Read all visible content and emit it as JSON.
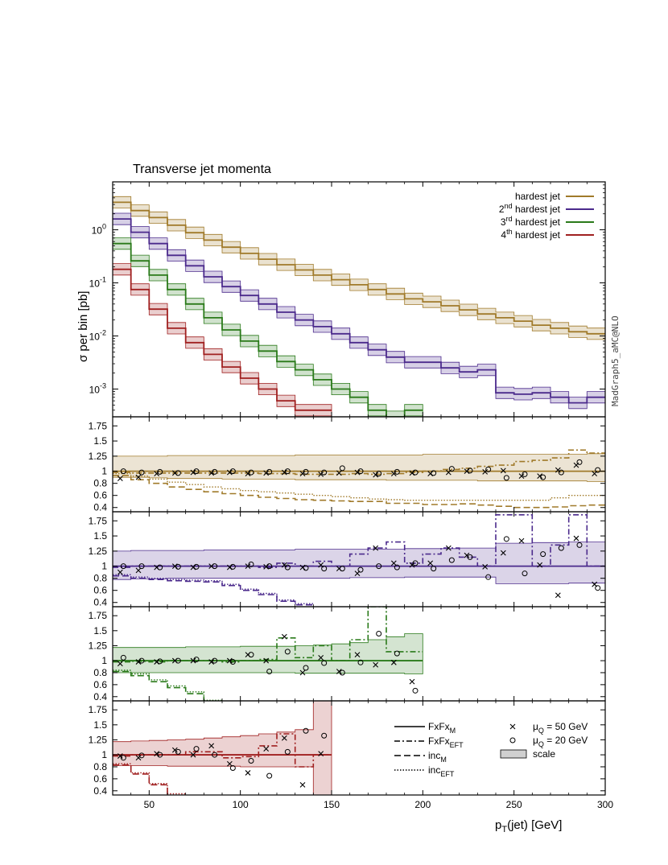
{
  "chart_data": {
    "type": "line",
    "title": "Transverse jet momenta",
    "side_label": "MadGraph5_aMC@NLO",
    "xlabel": {
      "main": "p",
      "sub": "T",
      "rest": "(jet) [GeV]"
    },
    "xlim": [
      30,
      300
    ],
    "xticks": [
      50,
      100,
      150,
      200,
      250,
      300
    ],
    "bin_width": 10,
    "x_bins_low": [
      30,
      40,
      50,
      60,
      70,
      80,
      90,
      100,
      110,
      120,
      130,
      140,
      150,
      160,
      170,
      180,
      190,
      200,
      210,
      220,
      230,
      240,
      250,
      260,
      270,
      280,
      290
    ],
    "main": {
      "ylabel": "σ per bin [pb]",
      "yscale": "log",
      "ylim": [
        0.0003,
        8
      ],
      "yticks": [
        {
          "value": 1,
          "base": "10",
          "exp": "0"
        },
        {
          "value": 0.1,
          "base": "10",
          "exp": "-1"
        },
        {
          "value": 0.01,
          "base": "10",
          "exp": "-2"
        },
        {
          "value": 0.001,
          "base": "10",
          "exp": "-3"
        }
      ],
      "band_factor": [
        0.78,
        1.28
      ],
      "series": [
        {
          "name": "hardest jet",
          "pre": "",
          "sup": "",
          "post": "hardest jet",
          "color": "#a07a2a",
          "values": [
            3.3,
            2.3,
            1.7,
            1.22,
            0.88,
            0.64,
            0.47,
            0.36,
            0.28,
            0.22,
            0.175,
            0.14,
            0.115,
            0.092,
            0.075,
            0.062,
            0.05,
            0.044,
            0.037,
            0.031,
            0.026,
            0.022,
            0.019,
            0.016,
            0.014,
            0.012,
            0.011
          ]
        },
        {
          "name": "2nd hardest jet",
          "pre": "2",
          "sup": "nd",
          "post": " hardest jet",
          "color": "#4b2a8c",
          "values": [
            1.6,
            0.9,
            0.55,
            0.33,
            0.21,
            0.13,
            0.085,
            0.058,
            0.04,
            0.028,
            0.02,
            0.015,
            0.011,
            0.0075,
            0.0055,
            0.004,
            0.0032,
            0.0032,
            0.0025,
            0.0021,
            0.0023,
            0.00085,
            0.0008,
            0.00085,
            0.0007,
            0.00055,
            0.0007
          ]
        },
        {
          "name": "3rd hardest jet",
          "pre": "3",
          "sup": "rd",
          "post": " hardest jet",
          "color": "#2a7a1a",
          "values": [
            0.55,
            0.26,
            0.14,
            0.075,
            0.04,
            0.022,
            0.013,
            0.008,
            0.0052,
            0.0033,
            0.0023,
            0.0015,
            0.001,
            0.0007,
            0.0004,
            0.0003,
            0.0004
          ]
        },
        {
          "name": "4th hardest jet",
          "pre": "4",
          "sup": "th",
          "post": " hardest jet",
          "color": "#a02020",
          "values": [
            0.18,
            0.075,
            0.032,
            0.014,
            0.0075,
            0.0045,
            0.0026,
            0.0016,
            0.001,
            0.0006,
            0.0004,
            0.0004
          ]
        }
      ]
    },
    "ratio": {
      "ylim": [
        0.33,
        1.9
      ],
      "yticks": [
        0.4,
        0.6,
        0.8,
        1,
        1.25,
        1.5,
        1.75
      ],
      "yticklabels": [
        "0.4",
        "0.6",
        "0.8",
        "1",
        "1.25",
        "1.5",
        "1.75"
      ],
      "panels": [
        {
          "color": "#a07a2a",
          "band_lo": [
            0.9,
            0.9,
            0.89,
            0.88,
            0.88,
            0.88,
            0.87,
            0.87,
            0.87,
            0.87,
            0.86,
            0.86,
            0.86,
            0.86,
            0.86,
            0.85,
            0.85,
            0.85,
            0.85,
            0.85,
            0.84,
            0.84,
            0.84,
            0.84,
            0.84,
            0.84,
            0.83
          ],
          "band_hi": [
            1.25,
            1.25,
            1.25,
            1.26,
            1.26,
            1.26,
            1.26,
            1.26,
            1.26,
            1.26,
            1.27,
            1.27,
            1.27,
            1.27,
            1.27,
            1.27,
            1.27,
            1.28,
            1.28,
            1.28,
            1.28,
            1.28,
            1.28,
            1.28,
            1.28,
            1.28,
            1.29
          ],
          "fxfx_eft": [
            0.98,
            0.97,
            0.97,
            0.97,
            0.97,
            0.97,
            0.97,
            0.97,
            0.96,
            0.96,
            0.95,
            0.95,
            0.95,
            0.96,
            0.95,
            0.96,
            0.98,
            1.0,
            1.03,
            1.05,
            1.08,
            1.1,
            1.16,
            1.18,
            1.22,
            1.35,
            1.3
          ],
          "inc_m": [
            0.93,
            0.86,
            0.8,
            0.74,
            0.7,
            0.66,
            0.63,
            0.6,
            0.57,
            0.55,
            0.53,
            0.52,
            0.51,
            0.5,
            0.5,
            0.47,
            0.47,
            0.45,
            0.45,
            0.46,
            0.44,
            0.42,
            0.4,
            0.4,
            0.41,
            0.43,
            0.44
          ],
          "inc_eft": [
            0.96,
            0.92,
            0.87,
            0.82,
            0.78,
            0.74,
            0.71,
            0.68,
            0.66,
            0.64,
            0.62,
            0.6,
            0.58,
            0.56,
            0.54,
            0.53,
            0.52,
            0.52,
            0.52,
            0.52,
            0.52,
            0.52,
            0.52,
            0.52,
            0.56,
            0.6,
            0.6
          ],
          "cross_x": [
            35,
            45,
            55,
            65,
            75,
            85,
            95,
            105,
            115,
            125,
            135,
            145,
            155,
            165,
            175,
            185,
            195,
            205,
            215,
            225,
            235,
            245,
            255,
            265,
            275,
            285,
            295
          ],
          "cross_y": [
            0.88,
            0.9,
            0.96,
            0.97,
            0.98,
            0.97,
            0.98,
            0.96,
            0.97,
            0.98,
            0.96,
            0.95,
            0.97,
            0.98,
            0.94,
            0.96,
            0.97,
            0.96,
            0.98,
            1.0,
            0.99,
            1.01,
            0.92,
            0.92,
            1.02,
            1.1,
            0.96
          ],
          "circle_x": [
            35,
            45,
            55,
            65,
            75,
            85,
            95,
            105,
            115,
            125,
            135,
            145,
            155,
            165,
            175,
            185,
            195,
            205,
            215,
            225,
            235,
            245,
            255,
            265,
            275,
            285,
            295
          ],
          "circle_y": [
            1.0,
            0.98,
            0.99,
            0.97,
            1.0,
            0.99,
            1.0,
            0.98,
            0.99,
            1.0,
            0.99,
            0.98,
            1.05,
            1.0,
            0.96,
            0.99,
            0.98,
            0.97,
            1.04,
            1.01,
            1.03,
            0.89,
            0.95,
            0.9,
            0.98,
            1.15,
            1.02
          ]
        },
        {
          "color": "#4b2a8c",
          "band_lo": [
            0.78,
            0.79,
            0.79,
            0.8,
            0.8,
            0.8,
            0.8,
            0.8,
            0.8,
            0.8,
            0.8,
            0.8,
            0.8,
            0.81,
            0.81,
            0.81,
            0.82,
            0.82,
            0.82,
            0.82,
            0.82,
            0.71,
            0.71,
            0.71,
            0.71,
            0.72,
            0.72
          ],
          "band_hi": [
            1.25,
            1.26,
            1.26,
            1.26,
            1.26,
            1.27,
            1.27,
            1.27,
            1.27,
            1.27,
            1.28,
            1.28,
            1.28,
            1.28,
            1.28,
            1.28,
            1.29,
            1.29,
            1.29,
            1.3,
            1.3,
            1.38,
            1.38,
            1.39,
            1.39,
            1.4,
            1.4
          ],
          "fxfx_eft": [
            0.98,
            1.0,
            1.0,
            1.0,
            1.0,
            1.0,
            1.0,
            1.0,
            0.98,
            1.05,
            1.0,
            1.08,
            1.0,
            1.2,
            1.3,
            1.4,
            1.05,
            1.2,
            1.3,
            1.15,
            1.0,
            1.85,
            1.85,
            1.0,
            1.35,
            1.85,
            1.0
          ],
          "inc_m": [
            0.84,
            0.8,
            0.78,
            0.76,
            0.75,
            0.74,
            0.68,
            0.6,
            0.53,
            0.42,
            0.36
          ],
          "inc_eft": [
            0.86,
            0.82,
            0.8,
            0.78,
            0.77,
            0.76,
            0.7,
            0.62,
            0.55,
            0.44,
            0.38
          ],
          "cross_x": [
            35,
            45,
            55,
            65,
            75,
            85,
            95,
            105,
            115,
            125,
            135,
            145,
            155,
            165,
            175,
            185,
            195,
            205,
            215,
            225,
            235,
            245,
            255,
            265,
            275,
            285,
            295
          ],
          "cross_y": [
            0.9,
            0.93,
            0.98,
            1.0,
            0.98,
            1.0,
            0.98,
            1.0,
            0.99,
            1.02,
            0.98,
            1.02,
            0.96,
            0.88,
            1.3,
            1.05,
            1.02,
            1.05,
            1.3,
            1.18,
            0.99,
            1.22,
            1.42,
            1.02,
            0.52,
            1.46,
            0.7
          ],
          "circle_x": [
            35,
            45,
            55,
            65,
            75,
            85,
            95,
            105,
            115,
            125,
            135,
            145,
            155,
            165,
            175,
            185,
            195,
            205,
            215,
            225,
            235,
            245,
            255,
            265,
            275,
            285,
            295
          ],
          "circle_y": [
            1.0,
            1.0,
            0.98,
            0.99,
            0.99,
            1.0,
            0.99,
            1.03,
            1.0,
            0.98,
            0.97,
            0.96,
            0.96,
            0.94,
            1.0,
            0.98,
            1.05,
            0.96,
            1.1,
            1.15,
            0.82,
            1.45,
            0.88,
            1.2,
            1.3,
            1.35,
            0.64
          ]
        },
        {
          "color": "#2a7a1a",
          "band_lo": [
            0.8,
            0.8,
            0.8,
            0.8,
            0.8,
            0.8,
            0.8,
            0.8,
            0.8,
            0.8,
            0.79,
            0.79,
            0.79,
            0.79,
            0.79,
            0.79,
            0.78
          ],
          "band_hi": [
            1.22,
            1.22,
            1.22,
            1.22,
            1.23,
            1.23,
            1.23,
            1.24,
            1.24,
            1.24,
            1.25,
            1.26,
            1.28,
            1.3,
            1.35,
            1.4,
            1.45
          ],
          "fxfx_eft": [
            0.98,
            0.99,
            0.98,
            1.0,
            1.0,
            1.0,
            0.98,
            1.0,
            1.02,
            1.38,
            1.05,
            1.25,
            1.0,
            1.35,
            1.9,
            1.15,
            1.15
          ],
          "inc_m": [
            0.82,
            0.75,
            0.65,
            0.55,
            0.45,
            0.32
          ],
          "inc_eft": [
            0.84,
            0.78,
            0.68,
            0.58,
            0.48,
            0.34
          ],
          "cross_x": [
            35,
            45,
            55,
            65,
            75,
            85,
            95,
            105,
            115,
            125,
            135,
            145,
            155,
            165,
            175,
            185,
            195
          ],
          "cross_y": [
            0.95,
            0.98,
            0.98,
            1.0,
            1.0,
            0.98,
            1.0,
            1.1,
            1.0,
            1.4,
            0.8,
            1.05,
            0.82,
            1.1,
            0.93,
            0.97,
            0.65
          ],
          "circle_x": [
            35,
            45,
            55,
            65,
            75,
            85,
            95,
            105,
            115,
            125,
            135,
            145,
            155,
            165,
            175,
            185,
            195
          ],
          "circle_y": [
            1.05,
            1.0,
            0.99,
            1.0,
            1.02,
            1.0,
            0.98,
            1.1,
            0.82,
            1.15,
            0.88,
            0.96,
            0.8,
            0.97,
            1.45,
            1.12,
            0.5
          ]
        },
        {
          "color": "#a02020",
          "band_lo": [
            0.82,
            0.82,
            0.82,
            0.81,
            0.81,
            0.81,
            0.81,
            0.8,
            0.8,
            0.8,
            0.8,
            0.2
          ],
          "band_hi": [
            1.22,
            1.23,
            1.24,
            1.25,
            1.26,
            1.28,
            1.3,
            1.32,
            1.35,
            1.38,
            1.42,
            1.9
          ],
          "fxfx_eft": [
            0.98,
            1.0,
            1.0,
            1.0,
            1.05,
            1.05,
            0.95,
            0.97,
            1.15,
            1.35,
            0.8,
            1.0
          ],
          "inc_m": [
            0.83,
            0.68,
            0.5,
            0.32
          ],
          "inc_eft": [
            0.85,
            0.7,
            0.52,
            0.35
          ],
          "cross_x": [
            35,
            45,
            55,
            65,
            75,
            85,
            95,
            105,
            115,
            125,
            135,
            145
          ],
          "cross_y": [
            0.98,
            0.95,
            1.02,
            1.08,
            1.0,
            1.15,
            0.85,
            0.7,
            1.1,
            1.28,
            0.5,
            1.02
          ],
          "circle_x": [
            35,
            45,
            55,
            65,
            75,
            85,
            95,
            105,
            115,
            125,
            135,
            145
          ],
          "circle_y": [
            0.95,
            0.99,
            1.0,
            1.05,
            1.1,
            1.0,
            0.78,
            0.9,
            0.65,
            1.05,
            1.4,
            1.32
          ]
        }
      ]
    },
    "legend_main": {
      "placement": "top-right"
    },
    "legend_ratio": {
      "placement": "bottom-right",
      "line_entries": [
        {
          "style": "solid",
          "main": "FxFx",
          "sub": "M"
        },
        {
          "style": "dashdot",
          "main": "FxFx",
          "sub": "EFT"
        },
        {
          "style": "dashed",
          "main": "inc",
          "sub": "M"
        },
        {
          "style": "dotted",
          "main": "inc",
          "sub": "EFT"
        }
      ],
      "marker_entries": [
        {
          "marker": "cross",
          "pre": "μ",
          "sub": "Q",
          "post": " = 50 GeV"
        },
        {
          "marker": "circle",
          "pre": "μ",
          "sub": "Q",
          "post": " = 20 GeV"
        },
        {
          "marker": "box",
          "pre": "scale",
          "sub": "",
          "post": ""
        }
      ]
    }
  }
}
